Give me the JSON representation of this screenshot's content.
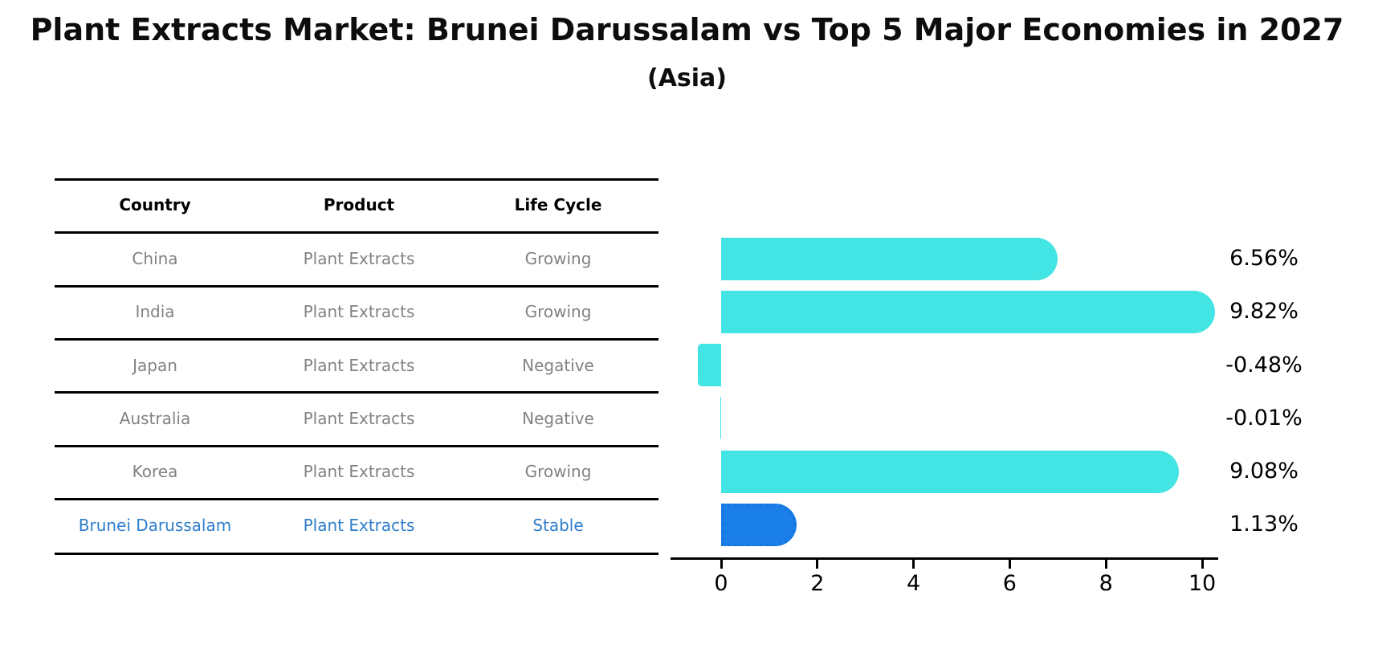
{
  "title": "Plant Extracts Market: Brunei Darussalam vs Top 5 Major Economies in 2027",
  "subtitle": "(Asia)",
  "table": {
    "headers": [
      "Country",
      "Product",
      "Life Cycle"
    ],
    "rows": [
      {
        "country": "China",
        "product": "Plant Extracts",
        "life_cycle": "Growing"
      },
      {
        "country": "India",
        "product": "Plant Extracts",
        "life_cycle": "Growing"
      },
      {
        "country": "Japan",
        "product": "Plant Extracts",
        "life_cycle": "Negative"
      },
      {
        "country": "Australia",
        "product": "Plant Extracts",
        "life_cycle": "Negative"
      },
      {
        "country": "Korea",
        "product": "Plant Extracts",
        "life_cycle": "Growing"
      },
      {
        "country": "Brunei Darussalam",
        "product": "Plant Extracts",
        "life_cycle": "Stable"
      }
    ],
    "highlight_row_index": 5
  },
  "chart_data": {
    "type": "bar",
    "orientation": "horizontal",
    "title": "Plant Extracts Market: Brunei Darussalam vs Top 5 Major Economies in 2027",
    "subtitle": "(Asia)",
    "categories": [
      "China",
      "India",
      "Japan",
      "Australia",
      "Korea",
      "Brunei Darussalam"
    ],
    "values": [
      6.56,
      9.82,
      -0.48,
      -0.01,
      9.08,
      1.13
    ],
    "value_labels": [
      "6.56%",
      "9.82%",
      "-0.48%",
      "-0.01%",
      "9.08%",
      "1.13%"
    ],
    "x_ticks": [
      "0",
      "2",
      "4",
      "6",
      "8",
      "10"
    ],
    "xlim": [
      -1.05,
      10.32
    ],
    "grid": false,
    "legend": false,
    "bar_color": "#42E5E4",
    "highlight_bar_color": "#1A7FE8",
    "highlight_bar_edge_color": "#1776DF",
    "highlight_index": 5
  },
  "colors": {
    "highlight_text": "#2E7DCC",
    "row_text": "#828282",
    "header_text": "#000000",
    "axis": "#000000",
    "background": "#FFFFFF"
  }
}
